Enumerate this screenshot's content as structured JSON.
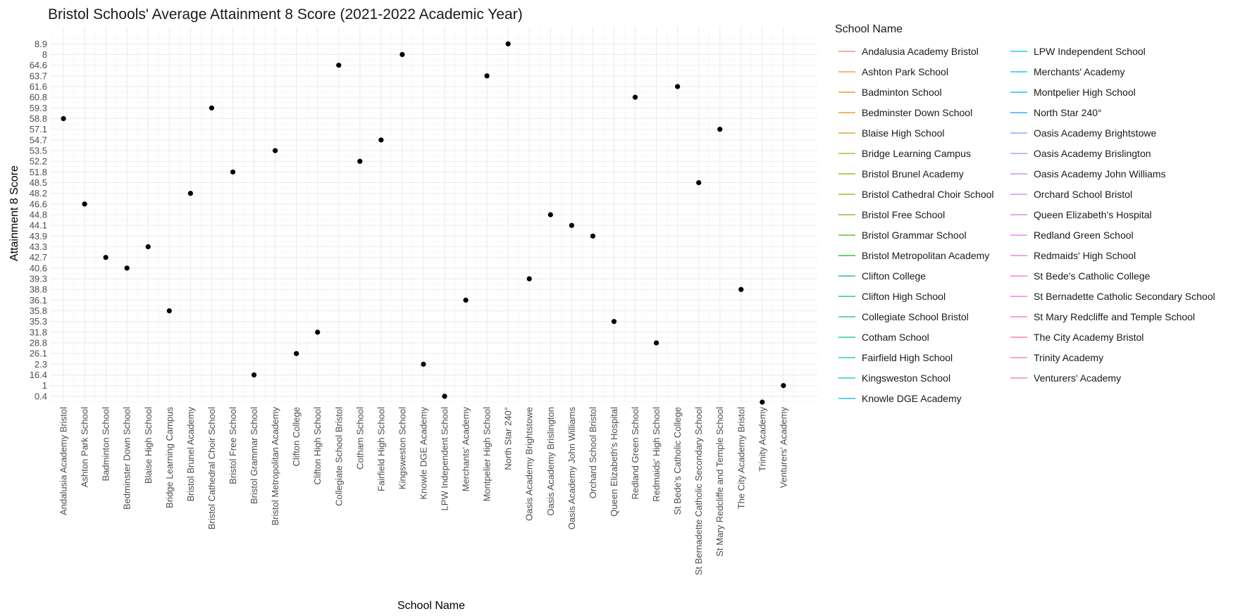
{
  "chart_data": {
    "type": "scatter",
    "title": "Bristol Schools' Average Attainment 8 Score (2021-2022 Academic Year)",
    "xlabel": "School Name",
    "ylabel": "Attainment 8 Score",
    "legend_title": "School Name",
    "legend_placement": "right",
    "grid": true,
    "point_color": "#000000",
    "y_levels": [
      "0.4",
      "1",
      "16.4",
      "2.3",
      "26.1",
      "28.8",
      "31.8",
      "35.3",
      "35.8",
      "36.1",
      "38.8",
      "39.3",
      "40.6",
      "42.7",
      "43.3",
      "43.9",
      "44.1",
      "44.8",
      "46.6",
      "48.2",
      "48.5",
      "51.8",
      "52.2",
      "53.5",
      "54.7",
      "57.1",
      "58.8",
      "59.3",
      "60.8",
      "61.6",
      "63.7",
      "64.6",
      "8",
      "8.9"
    ],
    "points": [
      {
        "x": "Andalusia Academy Bristol",
        "y": "58.8",
        "color": "#F8766D"
      },
      {
        "x": "Ashton Park School",
        "y": "46.6",
        "color": "#F07F4F"
      },
      {
        "x": "Badminton School",
        "y": "42.7",
        "color": "#E58700"
      },
      {
        "x": "Bedminster Down School",
        "y": "40.6",
        "color": "#D89000"
      },
      {
        "x": "Blaise High School",
        "y": "43.3",
        "color": "#C99800"
      },
      {
        "x": "Bridge Learning Campus",
        "y": "35.8",
        "color": "#B9A000"
      },
      {
        "x": "Bristol Brunel Academy",
        "y": "48.2",
        "color": "#A3A500"
      },
      {
        "x": "Bristol Cathedral Choir School",
        "y": "59.3",
        "color": "#8DAB00"
      },
      {
        "x": "Bristol Free School",
        "y": "51.8",
        "color": "#72B000"
      },
      {
        "x": "Bristol Grammar School",
        "y": "16.4",
        "color": "#4FB400"
      },
      {
        "x": "Bristol Metropolitan Academy",
        "y": "53.5",
        "color": "#00B81F"
      },
      {
        "x": "Clifton College",
        "y": "26.1",
        "color": "#00BB4E"
      },
      {
        "x": "Clifton High School",
        "y": "31.8",
        "color": "#00BE6C"
      },
      {
        "x": "Collegiate School Bristol",
        "y": "64.6",
        "color": "#00C086"
      },
      {
        "x": "Cotham School",
        "y": "52.2",
        "color": "#00C19C"
      },
      {
        "x": "Fairfield High School",
        "y": "54.7",
        "color": "#00C1B2"
      },
      {
        "x": "Kingsweston School",
        "y": "8",
        "color": "#00C0C5"
      },
      {
        "x": "Knowle DGE Academy",
        "y": "2.3",
        "color": "#00BDD6"
      },
      {
        "x": "LPW Independent School",
        "y": "0.4",
        "color": "#00B8E5"
      },
      {
        "x": "Merchants' Academy",
        "y": "36.1",
        "color": "#00B2F2"
      },
      {
        "x": "Montpelier High School",
        "y": "63.7",
        "color": "#00ABFD"
      },
      {
        "x": "North Star 240°",
        "y": "8.9",
        "color": "#00A2FF"
      },
      {
        "x": "Oasis Academy Brightstowe",
        "y": "39.3",
        "color": "#6B9AFF"
      },
      {
        "x": "Oasis Academy Brislington",
        "y": "44.8",
        "color": "#9590FF"
      },
      {
        "x": "Oasis Academy John Williams",
        "y": "44.1",
        "color": "#B385FF"
      },
      {
        "x": "Orchard School Bristol",
        "y": "43.9",
        "color": "#C77CFF"
      },
      {
        "x": "Queen Elizabeth's Hospital",
        "y": "35.3",
        "color": "#D874FD"
      },
      {
        "x": "Redland Green School",
        "y": "60.8",
        "color": "#E56EF5"
      },
      {
        "x": "Redmaids' High School",
        "y": "28.8",
        "color": "#EF67EB"
      },
      {
        "x": "St Bede's Catholic College",
        "y": "61.6",
        "color": "#F763DF"
      },
      {
        "x": "St Bernadette Catholic Secondary School",
        "y": "48.5",
        "color": "#FD61D1"
      },
      {
        "x": "St Mary Redcliffe and Temple School",
        "y": "57.1",
        "color": "#FF62BF"
      },
      {
        "x": "The City Academy Bristol",
        "y": "38.8",
        "color": "#FF67AC"
      },
      {
        "x": "Trinity Academy",
        "y": "",
        "color": "#FF6C98"
      },
      {
        "x": "Venturers' Academy",
        "y": "1",
        "color": "#FC7282"
      }
    ]
  }
}
